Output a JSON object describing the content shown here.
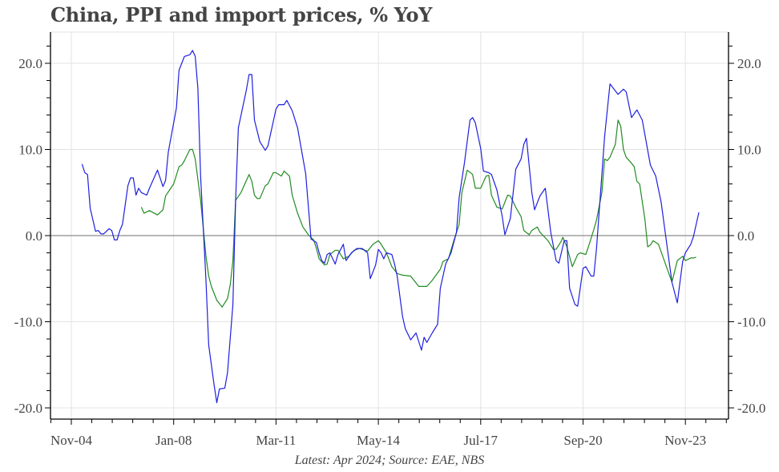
{
  "title": "China, PPI and import prices, % YoY",
  "footer": "Latest: Apr 2024; Source: EAE, NBS",
  "colors": {
    "import_prices": "#1f1fe0",
    "ppi": "#228b22",
    "grid": "#e3e3e3",
    "zero_line": "#8c8c8c",
    "axis": "#000000",
    "text": "#444444"
  },
  "chart_data": {
    "type": "line",
    "title": "China, PPI and import prices, % YoY",
    "xlabel": "",
    "ylabel": "",
    "ylim": [
      -21,
      23.5
    ],
    "yticks": [
      -20.0,
      -10.0,
      0.0,
      10.0,
      20.0
    ],
    "ytick_labels": [
      "-20.0",
      "-10.0",
      "0.0",
      "10.0",
      "20.0"
    ],
    "y_minor_step": 2,
    "xtick_labels": [
      "Nov-04",
      "Jan-08",
      "Mar-11",
      "May-14",
      "Jul-17",
      "Sep-20",
      "Nov-23"
    ],
    "xtick_month_offsets": [
      0,
      38,
      76,
      114,
      152,
      190,
      228
    ],
    "x_origin": "Nov-04",
    "x_unit": "months since Nov-04",
    "grid": true,
    "dual_axis_mirrored": true,
    "legend": "none",
    "source_note": "Latest: Apr 2024; Source: EAE, NBS",
    "series": [
      {
        "name": "Import prices",
        "color": "#1f1fe0",
        "points": [
          [
            4,
            8.3
          ],
          [
            5,
            7.3
          ],
          [
            6,
            7.1
          ],
          [
            7,
            3.2
          ],
          [
            9,
            0.5
          ],
          [
            10,
            0.6
          ],
          [
            11,
            0.2
          ],
          [
            12,
            0.2
          ],
          [
            14,
            0.8
          ],
          [
            15,
            0.6
          ],
          [
            16,
            -0.5
          ],
          [
            17,
            -0.5
          ],
          [
            18,
            0.6
          ],
          [
            19,
            1.3
          ],
          [
            21,
            5.8
          ],
          [
            22,
            6.7
          ],
          [
            23,
            6.7
          ],
          [
            24,
            4.7
          ],
          [
            25,
            5.5
          ],
          [
            26,
            5.0
          ],
          [
            28,
            4.7
          ],
          [
            29,
            5.5
          ],
          [
            32,
            7.6
          ],
          [
            34,
            5.7
          ],
          [
            35,
            6.4
          ],
          [
            36,
            9.7
          ],
          [
            39,
            14.8
          ],
          [
            40,
            19.2
          ],
          [
            42,
            20.8
          ],
          [
            44,
            21.0
          ],
          [
            45,
            21.5
          ],
          [
            46,
            20.8
          ],
          [
            47,
            17.1
          ],
          [
            48,
            6.9
          ],
          [
            50,
            -5.2
          ],
          [
            51,
            -12.7
          ],
          [
            53,
            -17.3
          ],
          [
            54,
            -19.4
          ],
          [
            55,
            -17.8
          ],
          [
            57,
            -17.7
          ],
          [
            58,
            -15.9
          ],
          [
            60,
            -8.0
          ],
          [
            61,
            4.1
          ],
          [
            62,
            12.5
          ],
          [
            65,
            16.9
          ],
          [
            66,
            18.7
          ],
          [
            67,
            18.7
          ],
          [
            68,
            13.4
          ],
          [
            70,
            10.9
          ],
          [
            72,
            9.9
          ],
          [
            73,
            10.4
          ],
          [
            76,
            14.7
          ],
          [
            77,
            15.2
          ],
          [
            79,
            15.2
          ],
          [
            80,
            15.7
          ],
          [
            82,
            14.5
          ],
          [
            84,
            12.5
          ],
          [
            87,
            7.2
          ],
          [
            89,
            -0.4
          ],
          [
            91,
            -0.8
          ],
          [
            92,
            -2.0
          ],
          [
            93,
            -2.9
          ],
          [
            94,
            -3.2
          ],
          [
            95,
            -2.2
          ],
          [
            96,
            -2.0
          ],
          [
            98,
            -3.3
          ],
          [
            99,
            -2.2
          ],
          [
            101,
            -1.0
          ],
          [
            102,
            -2.9
          ],
          [
            104,
            -2.0
          ],
          [
            106,
            -1.5
          ],
          [
            108,
            -1.5
          ],
          [
            110,
            -2.0
          ],
          [
            111,
            -5.0
          ],
          [
            113,
            -3.4
          ],
          [
            114,
            -1.6
          ],
          [
            115,
            -2.0
          ],
          [
            116,
            -2.7
          ],
          [
            117,
            -2.0
          ],
          [
            119,
            -2.2
          ],
          [
            120,
            -3.3
          ],
          [
            121,
            -4.7
          ],
          [
            123,
            -9.4
          ],
          [
            124,
            -10.8
          ],
          [
            126,
            -12.1
          ],
          [
            128,
            -11.3
          ],
          [
            130,
            -13.3
          ],
          [
            131,
            -11.8
          ],
          [
            132,
            -12.4
          ],
          [
            134,
            -11.3
          ],
          [
            136,
            -10.3
          ],
          [
            137,
            -6.1
          ],
          [
            139,
            -3.3
          ],
          [
            141,
            -2.0
          ],
          [
            143,
            0.4
          ],
          [
            144,
            4.4
          ],
          [
            146,
            8.5
          ],
          [
            148,
            13.4
          ],
          [
            149,
            13.7
          ],
          [
            150,
            13.1
          ],
          [
            152,
            10.1
          ],
          [
            153,
            7.5
          ],
          [
            155,
            7.3
          ],
          [
            156,
            7.1
          ],
          [
            158,
            5.3
          ],
          [
            160,
            2.2
          ],
          [
            161,
            0.1
          ],
          [
            163,
            2.0
          ],
          [
            165,
            7.7
          ],
          [
            167,
            8.9
          ],
          [
            168,
            10.6
          ],
          [
            169,
            11.3
          ],
          [
            171,
            5.0
          ],
          [
            172,
            3.0
          ],
          [
            174,
            4.6
          ],
          [
            176,
            5.5
          ],
          [
            178,
            0.4
          ],
          [
            180,
            -2.9
          ],
          [
            181,
            -3.2
          ],
          [
            183,
            -0.6
          ],
          [
            184,
            -0.6
          ],
          [
            185,
            -6.1
          ],
          [
            187,
            -8.0
          ],
          [
            188,
            -8.2
          ],
          [
            190,
            -3.8
          ],
          [
            191,
            -3.6
          ],
          [
            193,
            -4.7
          ],
          [
            194,
            -4.7
          ],
          [
            195,
            -1.5
          ],
          [
            198,
            11.5
          ],
          [
            200,
            17.6
          ],
          [
            202,
            16.8
          ],
          [
            203,
            16.4
          ],
          [
            205,
            17.0
          ],
          [
            206,
            16.7
          ],
          [
            208,
            13.7
          ],
          [
            210,
            14.6
          ],
          [
            212,
            13.4
          ],
          [
            215,
            8.2
          ],
          [
            217,
            6.9
          ],
          [
            219,
            3.9
          ],
          [
            223,
            -5.4
          ],
          [
            225,
            -7.8
          ],
          [
            227,
            -3.0
          ],
          [
            228,
            -2.0
          ],
          [
            230,
            -1.0
          ],
          [
            231,
            -0.1
          ],
          [
            233,
            2.7
          ]
        ]
      },
      {
        "name": "PPI",
        "color": "#228b22",
        "points": [
          [
            26,
            3.3
          ],
          [
            27,
            2.6
          ],
          [
            29,
            2.9
          ],
          [
            32,
            2.4
          ],
          [
            34,
            3.0
          ],
          [
            35,
            4.6
          ],
          [
            38,
            6.0
          ],
          [
            40,
            8.0
          ],
          [
            41,
            8.2
          ],
          [
            42,
            8.7
          ],
          [
            44,
            10.0
          ],
          [
            45,
            10.0
          ],
          [
            46,
            8.9
          ],
          [
            48,
            4.1
          ],
          [
            50,
            -2.4
          ],
          [
            51,
            -4.7
          ],
          [
            52,
            -5.9
          ],
          [
            54,
            -7.5
          ],
          [
            56,
            -8.3
          ],
          [
            58,
            -7.3
          ],
          [
            59,
            -5.7
          ],
          [
            60,
            -2.9
          ],
          [
            61,
            4.1
          ],
          [
            63,
            5.0
          ],
          [
            65,
            6.4
          ],
          [
            66,
            7.1
          ],
          [
            67,
            6.3
          ],
          [
            68,
            4.7
          ],
          [
            69,
            4.3
          ],
          [
            70,
            4.3
          ],
          [
            72,
            5.8
          ],
          [
            73,
            6.0
          ],
          [
            75,
            7.3
          ],
          [
            76,
            7.3
          ],
          [
            78,
            6.9
          ],
          [
            79,
            7.5
          ],
          [
            81,
            6.9
          ],
          [
            82,
            4.7
          ],
          [
            84,
            2.6
          ],
          [
            86,
            1.0
          ],
          [
            88,
            0.1
          ],
          [
            90,
            -0.5
          ],
          [
            91,
            -1.5
          ],
          [
            92,
            -2.7
          ],
          [
            94,
            -3.4
          ],
          [
            95,
            -3.3
          ],
          [
            96,
            -2.2
          ],
          [
            98,
            -1.7
          ],
          [
            99,
            -1.7
          ],
          [
            101,
            -2.7
          ],
          [
            103,
            -2.4
          ],
          [
            105,
            -1.7
          ],
          [
            107,
            -1.5
          ],
          [
            110,
            -1.8
          ],
          [
            112,
            -1.0
          ],
          [
            114,
            -0.6
          ],
          [
            115,
            -1.0
          ],
          [
            117,
            -2.0
          ],
          [
            119,
            -3.6
          ],
          [
            121,
            -4.4
          ],
          [
            123,
            -4.6
          ],
          [
            126,
            -4.7
          ],
          [
            129,
            -5.9
          ],
          [
            132,
            -5.9
          ],
          [
            134,
            -5.2
          ],
          [
            137,
            -3.9
          ],
          [
            138,
            -3.0
          ],
          [
            140,
            -2.7
          ],
          [
            142,
            -0.6
          ],
          [
            144,
            1.3
          ],
          [
            145,
            5.0
          ],
          [
            147,
            7.6
          ],
          [
            149,
            7.1
          ],
          [
            150,
            5.5
          ],
          [
            152,
            5.5
          ],
          [
            154,
            6.9
          ],
          [
            155,
            7.0
          ],
          [
            156,
            4.7
          ],
          [
            158,
            3.3
          ],
          [
            160,
            3.1
          ],
          [
            162,
            4.7
          ],
          [
            163,
            4.6
          ],
          [
            165,
            3.3
          ],
          [
            167,
            2.2
          ],
          [
            168,
            0.6
          ],
          [
            170,
            0.1
          ],
          [
            171,
            0.6
          ],
          [
            173,
            1.0
          ],
          [
            174,
            0.4
          ],
          [
            177,
            -0.6
          ],
          [
            179,
            -1.6
          ],
          [
            180,
            -1.6
          ],
          [
            182,
            -0.6
          ],
          [
            182.5,
            -0.2
          ],
          [
            184,
            -1.3
          ],
          [
            186,
            -3.6
          ],
          [
            188,
            -2.2
          ],
          [
            189,
            -2.0
          ],
          [
            191,
            -2.2
          ],
          [
            192,
            -1.3
          ],
          [
            194,
            0.7
          ],
          [
            195,
            1.8
          ],
          [
            197,
            5.0
          ],
          [
            198,
            8.9
          ],
          [
            199,
            8.7
          ],
          [
            200,
            9.1
          ],
          [
            202,
            10.6
          ],
          [
            203,
            13.4
          ],
          [
            204,
            12.7
          ],
          [
            205,
            10.0
          ],
          [
            206,
            9.1
          ],
          [
            208,
            8.4
          ],
          [
            209,
            8.0
          ],
          [
            210,
            6.3
          ],
          [
            211,
            6.0
          ],
          [
            213,
            1.8
          ],
          [
            214,
            -1.3
          ],
          [
            215,
            -1.1
          ],
          [
            216,
            -0.6
          ],
          [
            218,
            -1.0
          ],
          [
            223,
            -5.4
          ],
          [
            225,
            -2.9
          ],
          [
            227,
            -2.4
          ],
          [
            228,
            -2.9
          ],
          [
            230,
            -2.6
          ],
          [
            231,
            -2.6
          ],
          [
            232,
            -2.5
          ]
        ]
      }
    ]
  }
}
